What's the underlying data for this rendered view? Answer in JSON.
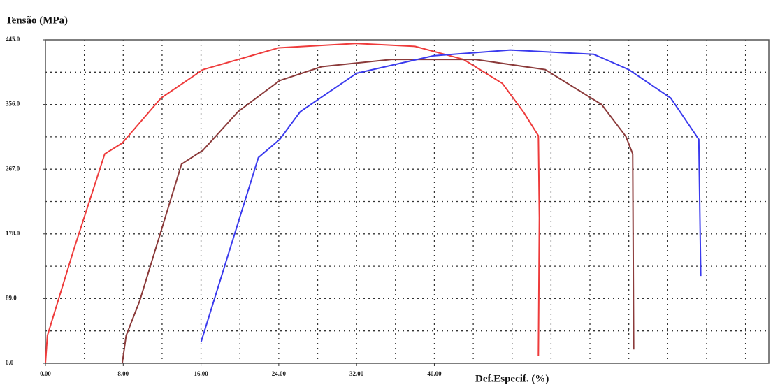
{
  "chart_data": {
    "type": "line",
    "title": "Tensão (MPa)",
    "x_label": "Def.Especif. (%)",
    "xlim": [
      0,
      74.4
    ],
    "ylim": [
      0,
      445
    ],
    "xticks": [
      {
        "value": 0,
        "label": "0.00"
      },
      {
        "value": 8,
        "label": "8.00"
      },
      {
        "value": 16,
        "label": "16.00"
      },
      {
        "value": 24,
        "label": "24.00"
      },
      {
        "value": 32,
        "label": "32.00"
      },
      {
        "value": 40,
        "label": "40.00"
      }
    ],
    "yticks": [
      {
        "value": 0,
        "label": "0.0"
      },
      {
        "value": 89,
        "label": "89.0"
      },
      {
        "value": 178,
        "label": "178.0"
      },
      {
        "value": 267,
        "label": "267.0"
      },
      {
        "value": 356,
        "label": "356.0"
      },
      {
        "value": 445,
        "label": "445.0"
      }
    ],
    "xgrid": [
      4,
      8,
      12,
      16,
      20,
      24,
      28,
      32,
      36,
      40,
      44,
      48,
      52,
      56,
      60,
      64,
      68,
      72
    ],
    "ygrid": [
      44.5,
      89,
      133.5,
      178,
      222.5,
      267,
      311.5,
      356,
      400.5
    ],
    "grid": true,
    "series": [
      {
        "color": "#ee3b3b",
        "x": [
          0,
          0.2,
          3,
          6.1,
          7.9,
          11.9,
          16.2,
          24,
          32,
          38,
          43,
          47,
          49.2,
          50.7,
          50.8,
          50.7
        ],
        "values": [
          0,
          38,
          160,
          288,
          303,
          365,
          404,
          434,
          440,
          436,
          418,
          385,
          345,
          313,
          200,
          10
        ]
      },
      {
        "color": "#8b3a3a",
        "x": [
          7.9,
          8.3,
          9.7,
          14,
          16.2,
          19.8,
          24.1,
          28.4,
          35.6,
          44.2,
          51.4,
          57.2,
          59.7,
          60.4,
          60.5
        ],
        "values": [
          0,
          38,
          86,
          274,
          293,
          346,
          389,
          408,
          418,
          418,
          404,
          356,
          312,
          288,
          19
        ]
      },
      {
        "color": "#3a3aee",
        "x": [
          16,
          21.9,
          24.1,
          26.2,
          32,
          39.9,
          47.8,
          56.4,
          60,
          64.3,
          67.2,
          67.4
        ],
        "values": [
          29,
          283,
          308,
          346,
          399,
          423,
          431,
          425,
          404,
          365,
          308,
          120
        ]
      }
    ]
  }
}
